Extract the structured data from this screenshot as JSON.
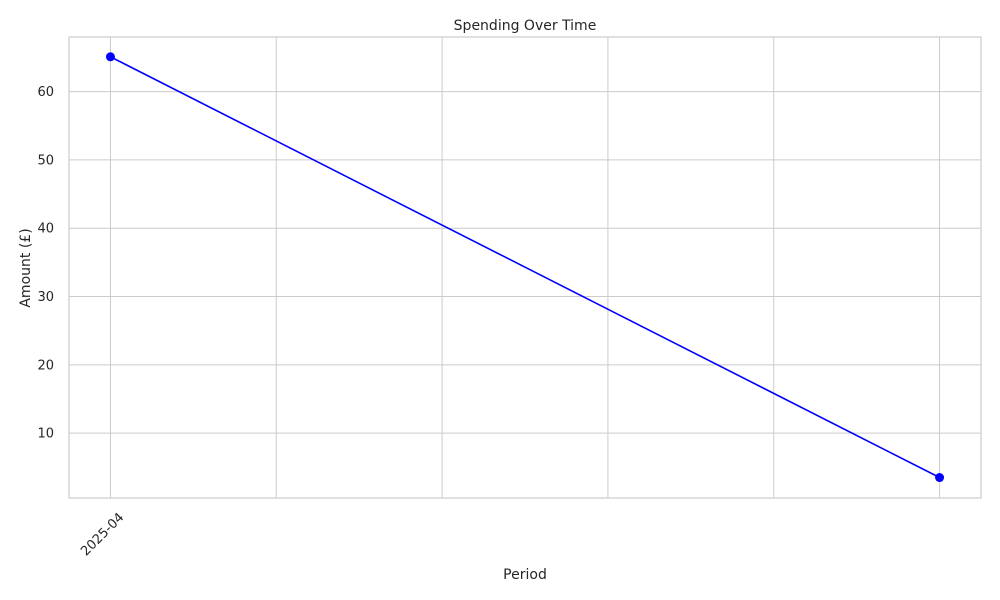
{
  "chart_data": {
    "type": "line",
    "title": "Spending Over Time",
    "xlabel": "Period",
    "ylabel": "Amount (£)",
    "x_tick_labels": [
      "2025-04"
    ],
    "y_ticks": [
      10,
      20,
      30,
      40,
      50,
      60
    ],
    "ylim": [
      0.5,
      68
    ],
    "grid": true,
    "series": [
      {
        "color": "#0000ff",
        "points": [
          {
            "x": 0,
            "y": 65.1
          },
          {
            "x": 5,
            "y": 3.5
          }
        ]
      }
    ],
    "xlim": [
      -0.25,
      5.25
    ],
    "x_grid": [
      0,
      1,
      2,
      3,
      4,
      5
    ]
  }
}
